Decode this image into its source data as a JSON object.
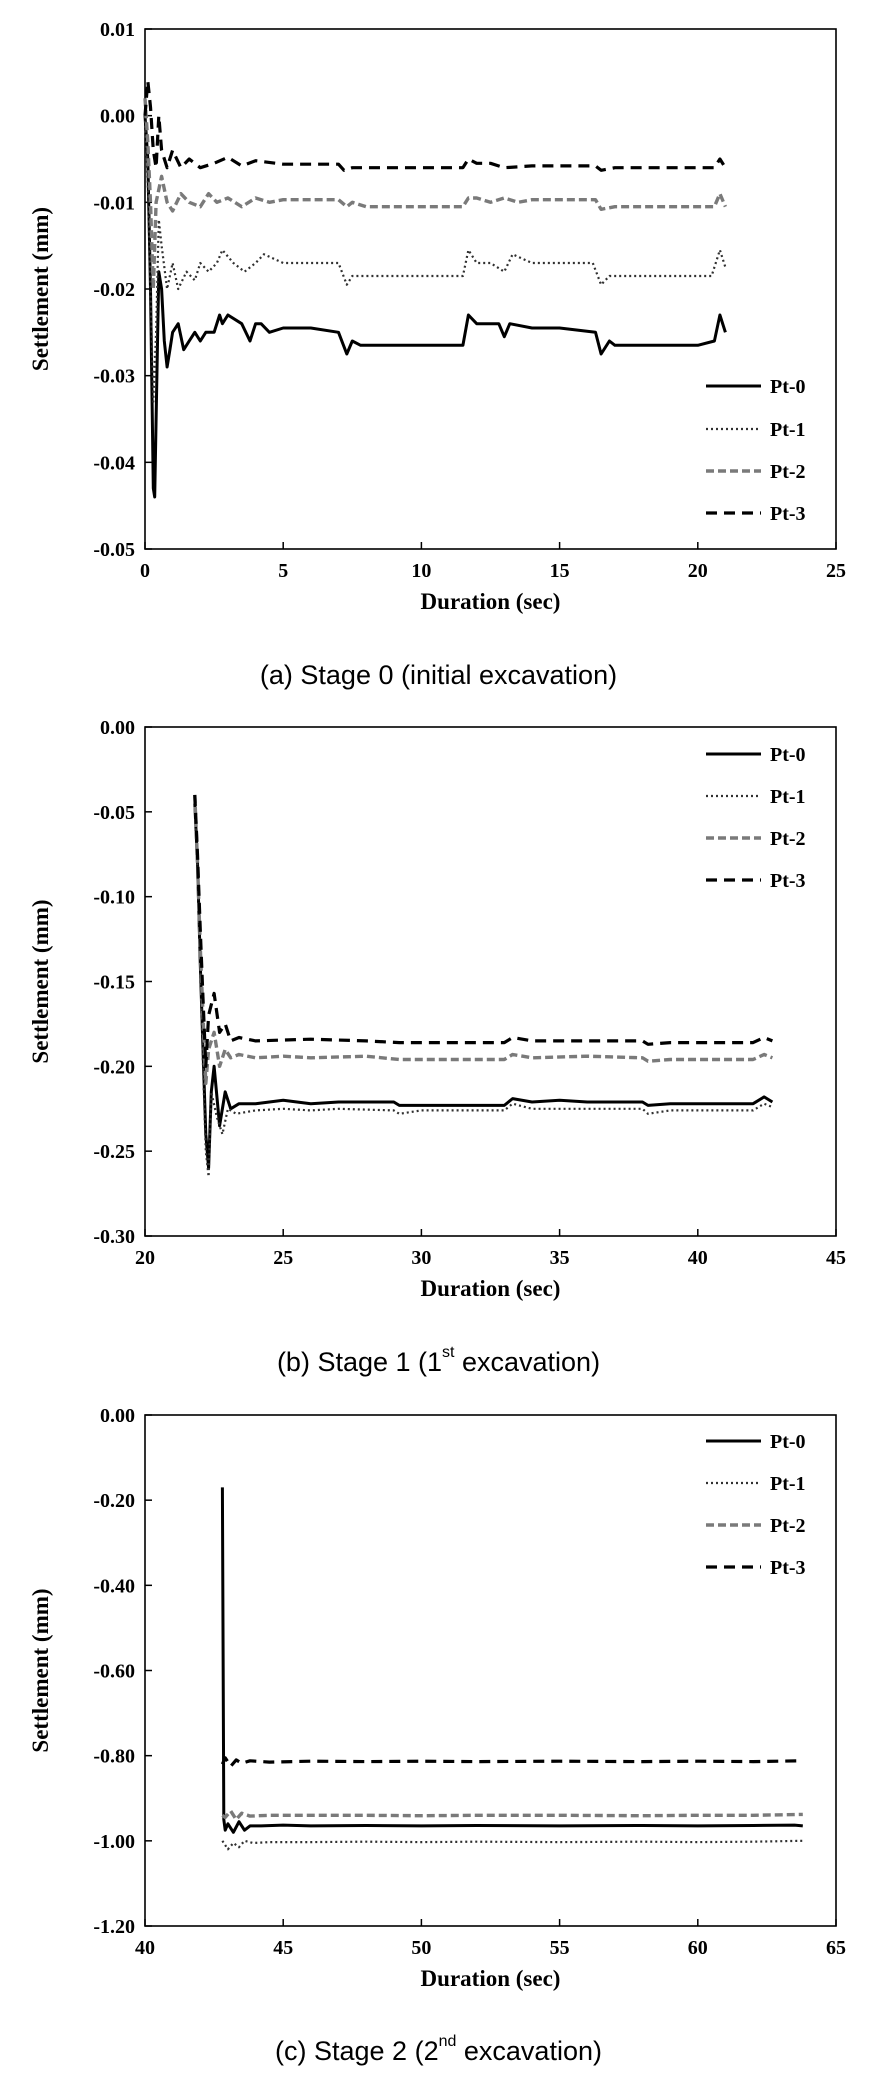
{
  "charts": [
    {
      "caption": "(a)  Stage  0  (initial  excavation)",
      "caption_sup": "",
      "caption_tail": ""
    },
    {
      "caption": "(b)  Stage  1  (1",
      "caption_sup": "st",
      "caption_tail": "  excavation)"
    },
    {
      "caption": "(c)  Stage  2  (2",
      "caption_sup": "nd",
      "caption_tail": "  excavation)"
    }
  ],
  "chart_data": [
    {
      "type": "line",
      "title": "",
      "xlabel": "Duration (sec)",
      "ylabel": "Settlement (mm)",
      "xlim": [
        0,
        25
      ],
      "ylim": [
        -0.05,
        0.01
      ],
      "xticks": [
        0,
        5,
        10,
        15,
        20,
        25
      ],
      "yticks": [
        0.01,
        0.0,
        -0.01,
        -0.02,
        -0.03,
        -0.04,
        -0.05
      ],
      "xtick_labels": [
        "0",
        "5",
        "10",
        "15",
        "20",
        "25"
      ],
      "ytick_labels": [
        "0.01",
        "0.00",
        "-0.01",
        "-0.02",
        "-0.03",
        "-0.04",
        "-0.05"
      ],
      "grid": false,
      "legend": "bottom-right",
      "series": [
        {
          "name": "Pt-0",
          "color": "#000000",
          "dash": "solid",
          "x": [
            0,
            0.1,
            0.2,
            0.3,
            0.35,
            0.4,
            0.5,
            0.6,
            0.7,
            0.8,
            0.9,
            1.0,
            1.2,
            1.4,
            1.6,
            1.8,
            2.0,
            2.2,
            2.5,
            2.7,
            2.8,
            3.0,
            3.5,
            3.8,
            4.0,
            4.2,
            4.5,
            5,
            6,
            7,
            7.3,
            7.5,
            7.8,
            8,
            10,
            11.5,
            11.7,
            12,
            12.8,
            13,
            13.2,
            14,
            15,
            16.3,
            16.5,
            16.8,
            17,
            18,
            20,
            20.6,
            20.8,
            21.0
          ],
          "y": [
            0,
            -0.005,
            -0.02,
            -0.043,
            -0.044,
            -0.035,
            -0.018,
            -0.02,
            -0.026,
            -0.029,
            -0.027,
            -0.025,
            -0.024,
            -0.027,
            -0.026,
            -0.025,
            -0.026,
            -0.025,
            -0.025,
            -0.023,
            -0.024,
            -0.023,
            -0.024,
            -0.026,
            -0.024,
            -0.024,
            -0.025,
            -0.0245,
            -0.0245,
            -0.025,
            -0.0275,
            -0.026,
            -0.0265,
            -0.0265,
            -0.0265,
            -0.0265,
            -0.023,
            -0.024,
            -0.024,
            -0.0255,
            -0.024,
            -0.0245,
            -0.0245,
            -0.025,
            -0.0275,
            -0.026,
            -0.0265,
            -0.0265,
            -0.0265,
            -0.026,
            -0.023,
            -0.025
          ]
        },
        {
          "name": "Pt-1",
          "color": "#303030",
          "dash": "dot",
          "x": [
            0,
            0.1,
            0.2,
            0.3,
            0.4,
            0.5,
            0.6,
            0.8,
            1.0,
            1.2,
            1.5,
            1.8,
            2.0,
            2.3,
            2.6,
            2.8,
            3.2,
            3.6,
            4.0,
            4.3,
            5,
            7,
            7.3,
            7.5,
            8,
            11.5,
            11.7,
            12,
            12.5,
            13,
            13.3,
            14,
            16.2,
            16.5,
            16.8,
            17,
            20.5,
            20.8,
            21.0
          ],
          "y": [
            0.0,
            -0.008,
            -0.02,
            -0.033,
            -0.025,
            -0.012,
            -0.015,
            -0.02,
            -0.017,
            -0.02,
            -0.018,
            -0.019,
            -0.017,
            -0.018,
            -0.017,
            -0.0155,
            -0.017,
            -0.018,
            -0.017,
            -0.016,
            -0.017,
            -0.017,
            -0.0195,
            -0.0185,
            -0.0185,
            -0.0185,
            -0.0155,
            -0.017,
            -0.017,
            -0.018,
            -0.016,
            -0.017,
            -0.017,
            -0.0195,
            -0.0185,
            -0.0185,
            -0.0185,
            -0.0155,
            -0.0175
          ]
        },
        {
          "name": "Pt-2",
          "color": "#7a7a7a",
          "dash": "dash-double",
          "x": [
            0,
            0.1,
            0.2,
            0.3,
            0.4,
            0.6,
            0.8,
            1.0,
            1.3,
            1.6,
            2.0,
            2.3,
            2.6,
            3.0,
            3.5,
            4.0,
            4.5,
            5,
            7,
            7.3,
            7.5,
            8,
            11.5,
            11.7,
            12,
            12.5,
            13,
            13.5,
            14,
            16.3,
            16.5,
            17,
            20.6,
            20.8,
            21.0
          ],
          "y": [
            0.002,
            -0.003,
            -0.01,
            -0.02,
            -0.01,
            -0.007,
            -0.01,
            -0.011,
            -0.009,
            -0.01,
            -0.0105,
            -0.009,
            -0.01,
            -0.0095,
            -0.0105,
            -0.0095,
            -0.01,
            -0.0097,
            -0.0097,
            -0.0105,
            -0.01,
            -0.0105,
            -0.0105,
            -0.0095,
            -0.0095,
            -0.01,
            -0.0095,
            -0.01,
            -0.0097,
            -0.0097,
            -0.0108,
            -0.0105,
            -0.0105,
            -0.009,
            -0.0105
          ]
        },
        {
          "name": "Pt-3",
          "color": "#000000",
          "dash": "dash",
          "x": [
            0,
            0.1,
            0.2,
            0.3,
            0.4,
            0.5,
            0.6,
            0.8,
            1.0,
            1.3,
            1.6,
            2.0,
            2.5,
            3.0,
            3.5,
            4.0,
            5,
            7,
            7.2,
            7.5,
            8,
            11.5,
            11.7,
            12,
            12.5,
            13,
            14,
            16.3,
            16.5,
            17,
            20.6,
            20.8,
            21.0
          ],
          "y": [
            0.0,
            0.004,
            0.001,
            -0.004,
            -0.006,
            0.0,
            -0.004,
            -0.006,
            -0.004,
            -0.006,
            -0.005,
            -0.006,
            -0.0055,
            -0.0048,
            -0.0058,
            -0.0052,
            -0.0056,
            -0.0056,
            -0.0063,
            -0.006,
            -0.006,
            -0.006,
            -0.005,
            -0.0055,
            -0.0055,
            -0.006,
            -0.0058,
            -0.0058,
            -0.0063,
            -0.006,
            -0.006,
            -0.005,
            -0.006
          ]
        }
      ]
    },
    {
      "type": "line",
      "title": "",
      "xlabel": "Duration (sec)",
      "ylabel": "Settlement (mm)",
      "xlim": [
        20,
        45
      ],
      "ylim": [
        -0.3,
        0.0
      ],
      "xticks": [
        20,
        25,
        30,
        35,
        40,
        45
      ],
      "yticks": [
        0.0,
        -0.05,
        -0.1,
        -0.15,
        -0.2,
        -0.25,
        -0.3
      ],
      "xtick_labels": [
        "20",
        "25",
        "30",
        "35",
        "40",
        "45"
      ],
      "ytick_labels": [
        "0.00",
        "-0.05",
        "-0.10",
        "-0.15",
        "-0.20",
        "-0.25",
        "-0.30"
      ],
      "grid": false,
      "legend": "top-right",
      "series": [
        {
          "name": "Pt-0",
          "color": "#000000",
          "dash": "solid",
          "x": [
            21.8,
            21.9,
            22.0,
            22.1,
            22.2,
            22.3,
            22.4,
            22.5,
            22.7,
            22.9,
            23.1,
            23.4,
            24,
            25,
            26,
            27,
            28,
            29,
            29.2,
            30,
            31,
            33,
            33.3,
            34,
            35,
            36,
            38,
            38.2,
            39,
            40,
            42,
            42.4,
            42.7
          ],
          "y": [
            -0.045,
            -0.08,
            -0.14,
            -0.19,
            -0.24,
            -0.26,
            -0.215,
            -0.2,
            -0.235,
            -0.215,
            -0.225,
            -0.222,
            -0.222,
            -0.22,
            -0.222,
            -0.221,
            -0.221,
            -0.221,
            -0.223,
            -0.223,
            -0.223,
            -0.223,
            -0.219,
            -0.221,
            -0.22,
            -0.221,
            -0.221,
            -0.223,
            -0.222,
            -0.222,
            -0.222,
            -0.218,
            -0.221
          ]
        },
        {
          "name": "Pt-1",
          "color": "#303030",
          "dash": "dot",
          "x": [
            21.8,
            21.9,
            22.0,
            22.1,
            22.2,
            22.3,
            22.4,
            22.6,
            22.8,
            23.0,
            23.3,
            24,
            25,
            26,
            27,
            29,
            29.2,
            30,
            33,
            33.3,
            34,
            36,
            38,
            38.2,
            39,
            42,
            42.4,
            42.7
          ],
          "y": [
            -0.045,
            -0.085,
            -0.14,
            -0.2,
            -0.25,
            -0.265,
            -0.215,
            -0.23,
            -0.24,
            -0.225,
            -0.228,
            -0.226,
            -0.225,
            -0.226,
            -0.225,
            -0.226,
            -0.228,
            -0.226,
            -0.226,
            -0.222,
            -0.225,
            -0.225,
            -0.225,
            -0.228,
            -0.226,
            -0.226,
            -0.222,
            -0.224
          ]
        },
        {
          "name": "Pt-2",
          "color": "#7a7a7a",
          "dash": "dash-double",
          "x": [
            21.8,
            21.9,
            22.0,
            22.1,
            22.2,
            22.3,
            22.5,
            22.7,
            22.9,
            23.1,
            23.4,
            24,
            25,
            26,
            28,
            29.2,
            30,
            33,
            33.3,
            34,
            36,
            38,
            38.2,
            39,
            42,
            42.4,
            42.7
          ],
          "y": [
            -0.04,
            -0.08,
            -0.13,
            -0.17,
            -0.21,
            -0.19,
            -0.18,
            -0.2,
            -0.19,
            -0.195,
            -0.193,
            -0.195,
            -0.194,
            -0.195,
            -0.194,
            -0.196,
            -0.196,
            -0.196,
            -0.193,
            -0.195,
            -0.194,
            -0.195,
            -0.197,
            -0.196,
            -0.196,
            -0.193,
            -0.195
          ]
        },
        {
          "name": "Pt-3",
          "color": "#000000",
          "dash": "dash",
          "x": [
            21.8,
            21.9,
            22.0,
            22.1,
            22.2,
            22.3,
            22.5,
            22.7,
            22.9,
            23.1,
            23.4,
            24,
            26,
            28,
            29.2,
            30,
            33,
            33.3,
            34,
            36,
            38,
            38.2,
            39,
            42,
            42.4,
            42.7
          ],
          "y": [
            -0.04,
            -0.075,
            -0.12,
            -0.16,
            -0.2,
            -0.17,
            -0.157,
            -0.18,
            -0.175,
            -0.185,
            -0.183,
            -0.185,
            -0.184,
            -0.185,
            -0.186,
            -0.186,
            -0.186,
            -0.183,
            -0.185,
            -0.185,
            -0.185,
            -0.187,
            -0.186,
            -0.186,
            -0.183,
            -0.185
          ]
        }
      ]
    },
    {
      "type": "line",
      "title": "",
      "xlabel": "Duration (sec)",
      "ylabel": "Settlement (mm)",
      "xlim": [
        40,
        65
      ],
      "ylim": [
        -1.2,
        0.0
      ],
      "xticks": [
        40,
        45,
        50,
        55,
        60,
        65
      ],
      "yticks": [
        0.0,
        -0.2,
        -0.4,
        -0.6,
        -0.8,
        -1.0,
        -1.2
      ],
      "xtick_labels": [
        "40",
        "45",
        "50",
        "55",
        "60",
        "65"
      ],
      "ytick_labels": [
        "0.00",
        "-0.20",
        "-0.40",
        "-0.60",
        "-0.80",
        "-1.00",
        "-1.20"
      ],
      "grid": false,
      "legend": "top-right",
      "series": [
        {
          "name": "Pt-0",
          "color": "#000000",
          "dash": "solid",
          "x": [
            42.8,
            42.85,
            42.9,
            43.0,
            43.2,
            43.4,
            43.6,
            43.8,
            44.2,
            45,
            46,
            48,
            50,
            52,
            55,
            58,
            60,
            62,
            63.5,
            63.8
          ],
          "y": [
            -0.17,
            -0.95,
            -0.975,
            -0.96,
            -0.98,
            -0.955,
            -0.975,
            -0.965,
            -0.965,
            -0.963,
            -0.965,
            -0.964,
            -0.965,
            -0.964,
            -0.965,
            -0.964,
            -0.965,
            -0.964,
            -0.963,
            -0.965
          ]
        },
        {
          "name": "Pt-1",
          "color": "#303030",
          "dash": "dot",
          "x": [
            42.8,
            42.9,
            43.0,
            43.2,
            43.4,
            43.6,
            43.9,
            44.5,
            46,
            48,
            50,
            52,
            55,
            58,
            60,
            62,
            63.8
          ],
          "y": [
            -1.0,
            -1.01,
            -1.02,
            -1.005,
            -1.015,
            -1.0,
            -1.005,
            -1.003,
            -1.003,
            -1.002,
            -1.003,
            -1.002,
            -1.003,
            -1.002,
            -1.003,
            -1.002,
            -1.0
          ]
        },
        {
          "name": "Pt-2",
          "color": "#7a7a7a",
          "dash": "dash-double",
          "x": [
            42.8,
            42.9,
            43.1,
            43.3,
            43.5,
            43.8,
            44.5,
            46,
            48,
            50,
            52,
            55,
            58,
            60,
            62,
            63.8
          ],
          "y": [
            -0.94,
            -0.945,
            -0.93,
            -0.95,
            -0.935,
            -0.942,
            -0.94,
            -0.94,
            -0.94,
            -0.941,
            -0.94,
            -0.94,
            -0.941,
            -0.94,
            -0.94,
            -0.938
          ]
        },
        {
          "name": "Pt-3",
          "color": "#000000",
          "dash": "dash",
          "x": [
            42.8,
            42.9,
            43.1,
            43.3,
            43.5,
            43.8,
            44.5,
            46,
            48,
            50,
            52,
            55,
            58,
            60,
            62,
            63.8
          ],
          "y": [
            -0.82,
            -0.805,
            -0.825,
            -0.81,
            -0.818,
            -0.812,
            -0.815,
            -0.813,
            -0.814,
            -0.813,
            -0.814,
            -0.813,
            -0.814,
            -0.813,
            -0.814,
            -0.812
          ]
        }
      ]
    }
  ]
}
